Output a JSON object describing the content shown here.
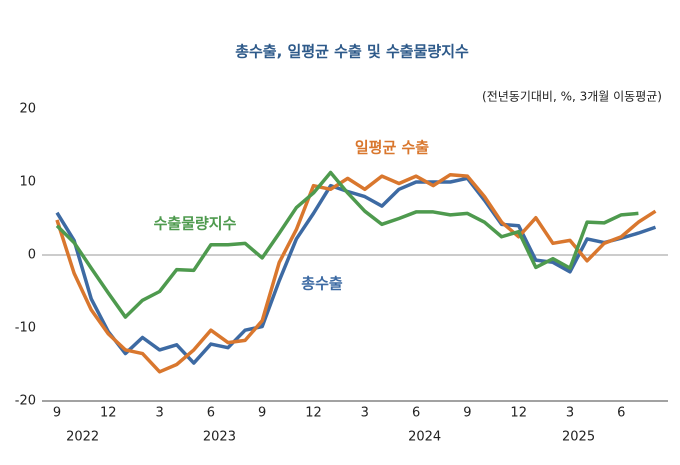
{
  "chart_data": {
    "type": "line",
    "title": "총수출, 일평균 수출 및 수출물량지수",
    "subtitle": "(전년동기대비, %, 3개월 이동평균)",
    "categories": [
      "9",
      null,
      null,
      "12",
      null,
      null,
      "3",
      null,
      null,
      "6",
      null,
      null,
      "9",
      null,
      null,
      "12",
      null,
      null,
      "3",
      null,
      null,
      "6",
      null,
      null,
      "9",
      null,
      null,
      "12",
      null,
      null,
      "3",
      null,
      null,
      "6",
      null,
      null
    ],
    "year_labels": [
      null,
      "2022",
      null,
      null,
      null,
      null,
      null,
      null,
      null,
      "2023",
      null,
      null,
      null,
      null,
      null,
      null,
      null,
      null,
      null,
      null,
      null,
      "2024",
      null,
      null,
      null,
      null,
      null,
      null,
      null,
      null,
      "2025",
      null,
      null,
      null,
      null,
      null
    ],
    "series": [
      {
        "name": "총수출",
        "color": "#3d6aa3",
        "values": [
          5.8,
          2,
          -6,
          -10.5,
          -13.5,
          -11.3,
          -13,
          -12.3,
          -14.8,
          -12.2,
          -12.7,
          -10.3,
          -9.8,
          -3.5,
          2.2,
          5.7,
          9.5,
          8.7,
          8,
          6.7,
          9,
          10,
          10,
          10,
          10.5,
          7.5,
          4.2,
          4,
          -0.7,
          -1,
          -2.3,
          2.2,
          1.7,
          2.3,
          3,
          3.8
        ]
      },
      {
        "name": "일평균 수출",
        "color": "#d9772e",
        "values": [
          4.8,
          -2.5,
          -7.5,
          -10.8,
          -13,
          -13.5,
          -16,
          -15,
          -13,
          -10.3,
          -12,
          -11.7,
          -9,
          -1,
          3.5,
          9.5,
          9,
          10.5,
          9,
          10.8,
          9.8,
          10.8,
          9.5,
          11,
          10.8,
          8,
          4.5,
          2.5,
          5.1,
          1.6,
          2,
          -0.8,
          1.6,
          2.5,
          4.5,
          6
        ]
      },
      {
        "name": "수출물량지수",
        "color": "#4e9a4e",
        "values": [
          4,
          1.7,
          -1.8,
          -5.2,
          -8.5,
          -6.2,
          -5,
          -2,
          -2.1,
          1.4,
          1.4,
          1.6,
          -0.4,
          3,
          6.5,
          8.5,
          11.3,
          8.5,
          6,
          4.2,
          5,
          5.9,
          5.9,
          5.5,
          5.7,
          4.5,
          2.5,
          3.2,
          -1.7,
          -0.5,
          -1.8,
          4.5,
          4.4,
          5.5,
          5.7,
          null
        ]
      }
    ],
    "ylim": [
      -20,
      20
    ],
    "yticks": [
      -20,
      -10,
      0,
      10,
      20
    ]
  }
}
